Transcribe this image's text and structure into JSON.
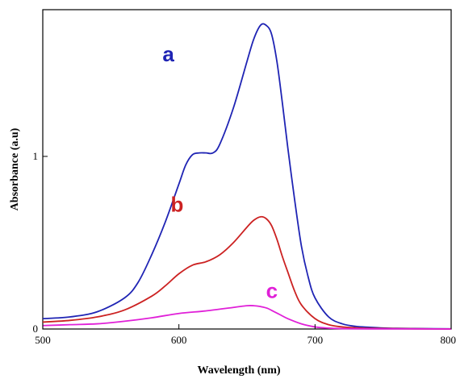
{
  "chart_data": {
    "type": "line",
    "title": "",
    "xlabel": "Wavelength (nm)",
    "ylabel": "Absorbance (a.u)",
    "xlim": [
      500,
      800
    ],
    "ylim": [
      0,
      1.85
    ],
    "x_ticks": [
      500,
      600,
      700,
      800
    ],
    "x_tick_labels": [
      "500",
      "600",
      "700",
      "800"
    ],
    "y_ticks": [
      0,
      1
    ],
    "y_tick_labels": [
      "0",
      "1"
    ],
    "grid": false,
    "legend": "none",
    "series": [
      {
        "name": "a",
        "color": "#1f24b4",
        "label_at": [
          588,
          1.55
        ],
        "x": [
          500,
          520,
          540,
          560,
          570,
          580,
          590,
          600,
          605,
          610,
          615,
          620,
          625,
          630,
          640,
          650,
          655,
          660,
          664,
          668,
          672,
          676,
          680,
          685,
          690,
          695,
          700,
          710,
          720,
          730,
          740,
          750,
          760,
          780,
          800
        ],
        "y": [
          0.06,
          0.07,
          0.1,
          0.18,
          0.27,
          0.43,
          0.62,
          0.84,
          0.95,
          1.01,
          1.02,
          1.02,
          1.02,
          1.07,
          1.28,
          1.55,
          1.68,
          1.76,
          1.76,
          1.71,
          1.55,
          1.31,
          1.05,
          0.75,
          0.48,
          0.3,
          0.18,
          0.07,
          0.03,
          0.015,
          0.01,
          0.006,
          0.004,
          0.002,
          0.001
        ]
      },
      {
        "name": "b",
        "color": "#cc2222",
        "label_at": [
          594,
          0.68
        ],
        "x": [
          500,
          520,
          540,
          560,
          580,
          590,
          600,
          610,
          620,
          630,
          640,
          650,
          655,
          660,
          664,
          668,
          672,
          676,
          680,
          685,
          690,
          700,
          710,
          720,
          730,
          740,
          760,
          780,
          800
        ],
        "y": [
          0.04,
          0.05,
          0.07,
          0.11,
          0.19,
          0.25,
          0.32,
          0.37,
          0.39,
          0.43,
          0.5,
          0.59,
          0.63,
          0.65,
          0.64,
          0.6,
          0.52,
          0.42,
          0.33,
          0.22,
          0.14,
          0.06,
          0.025,
          0.012,
          0.007,
          0.004,
          0.002,
          0.001,
          0.0
        ]
      },
      {
        "name": "c",
        "color": "#e020d8",
        "label_at": [
          664,
          0.18
        ],
        "x": [
          500,
          520,
          540,
          560,
          580,
          600,
          620,
          640,
          650,
          655,
          660,
          665,
          670,
          675,
          680,
          690,
          700,
          710,
          720,
          740,
          800
        ],
        "y": [
          0.02,
          0.025,
          0.03,
          0.045,
          0.065,
          0.09,
          0.105,
          0.125,
          0.135,
          0.135,
          0.13,
          0.12,
          0.1,
          0.08,
          0.06,
          0.03,
          0.012,
          0.005,
          0.002,
          0.001,
          0.0
        ]
      }
    ]
  }
}
